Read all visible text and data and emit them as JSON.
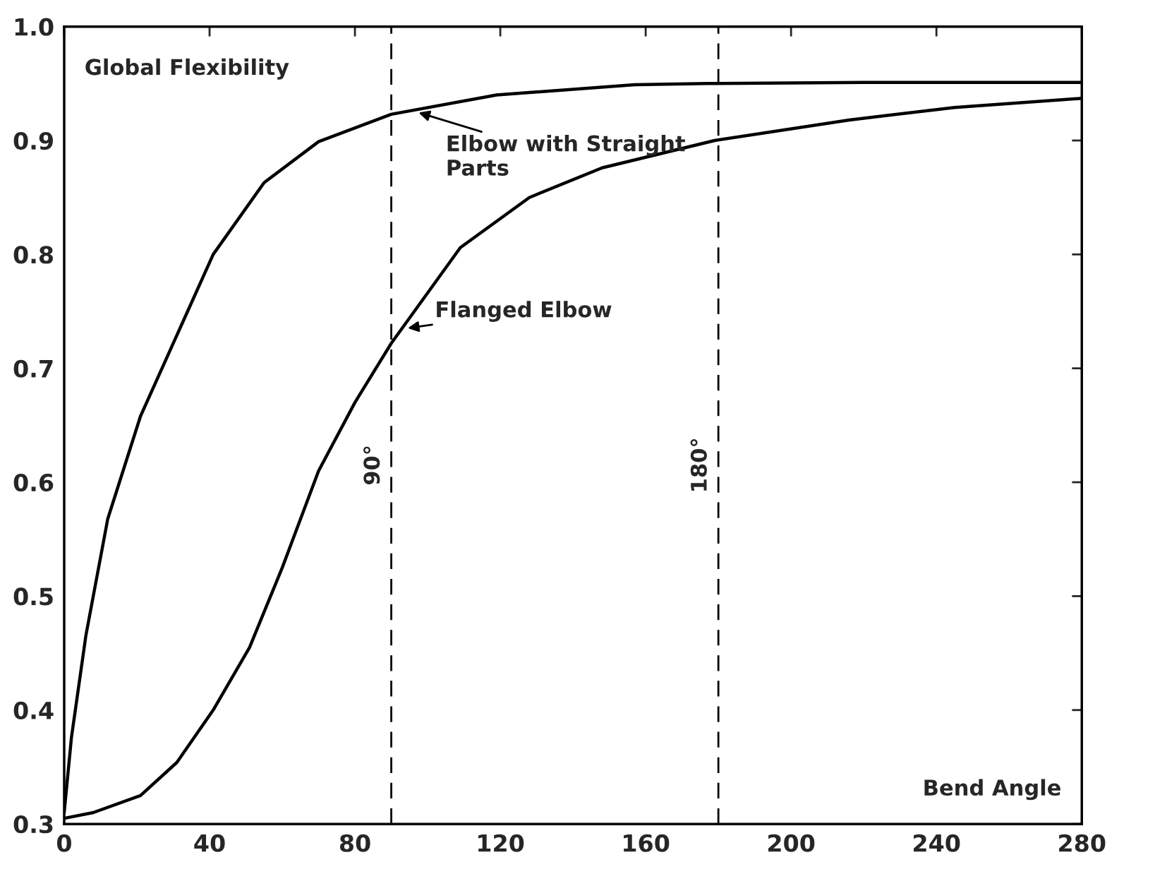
{
  "chart_data": {
    "type": "line",
    "xlabel": "Bend Angle",
    "ylabel": "Global Flexibility",
    "xlim": [
      0,
      280
    ],
    "ylim": [
      0.3,
      1.0
    ],
    "xticks": [
      0,
      40,
      80,
      120,
      160,
      200,
      240,
      280
    ],
    "yticks": [
      0.3,
      0.4,
      0.5,
      0.6,
      0.7,
      0.8,
      0.9,
      {
        "value": 1.0,
        "label": "1.0"
      }
    ],
    "grid": false,
    "line_style": "solid",
    "marker": "none",
    "series": [
      {
        "color": "#000000",
        "x": [
          0,
          2,
          6,
          12,
          21,
          31,
          41,
          55,
          70,
          90,
          119,
          157,
          177,
          220,
          280
        ],
        "values": [
          0.31,
          0.376,
          0.466,
          0.568,
          0.658,
          0.729,
          0.8,
          0.863,
          0.899,
          0.923,
          0.94,
          0.949,
          0.95,
          0.951,
          0.951
        ]
      },
      {
        "color": "#000000",
        "x": [
          0,
          8,
          21,
          31,
          41,
          51,
          60,
          70,
          80,
          90,
          109,
          128,
          148,
          179,
          216,
          245,
          280
        ],
        "values": [
          0.305,
          0.31,
          0.325,
          0.354,
          0.4,
          0.455,
          0.525,
          0.61,
          0.67,
          0.722,
          0.806,
          0.85,
          0.876,
          0.9,
          0.918,
          0.929,
          0.937
        ]
      }
    ],
    "ref_lines": [
      {
        "axis": "x",
        "value": 90,
        "label": "90°",
        "color": "#000000",
        "line_style": "dashed"
      },
      {
        "axis": "x",
        "value": 180,
        "label": "180°",
        "color": "#000000",
        "line_style": "dashed"
      }
    ],
    "annotations": [
      {
        "text": "Elbow with Straight\nParts",
        "x": 97,
        "y": 0.925
      },
      {
        "text": "Flanged Elbow",
        "x": 94,
        "y": 0.735
      }
    ]
  }
}
